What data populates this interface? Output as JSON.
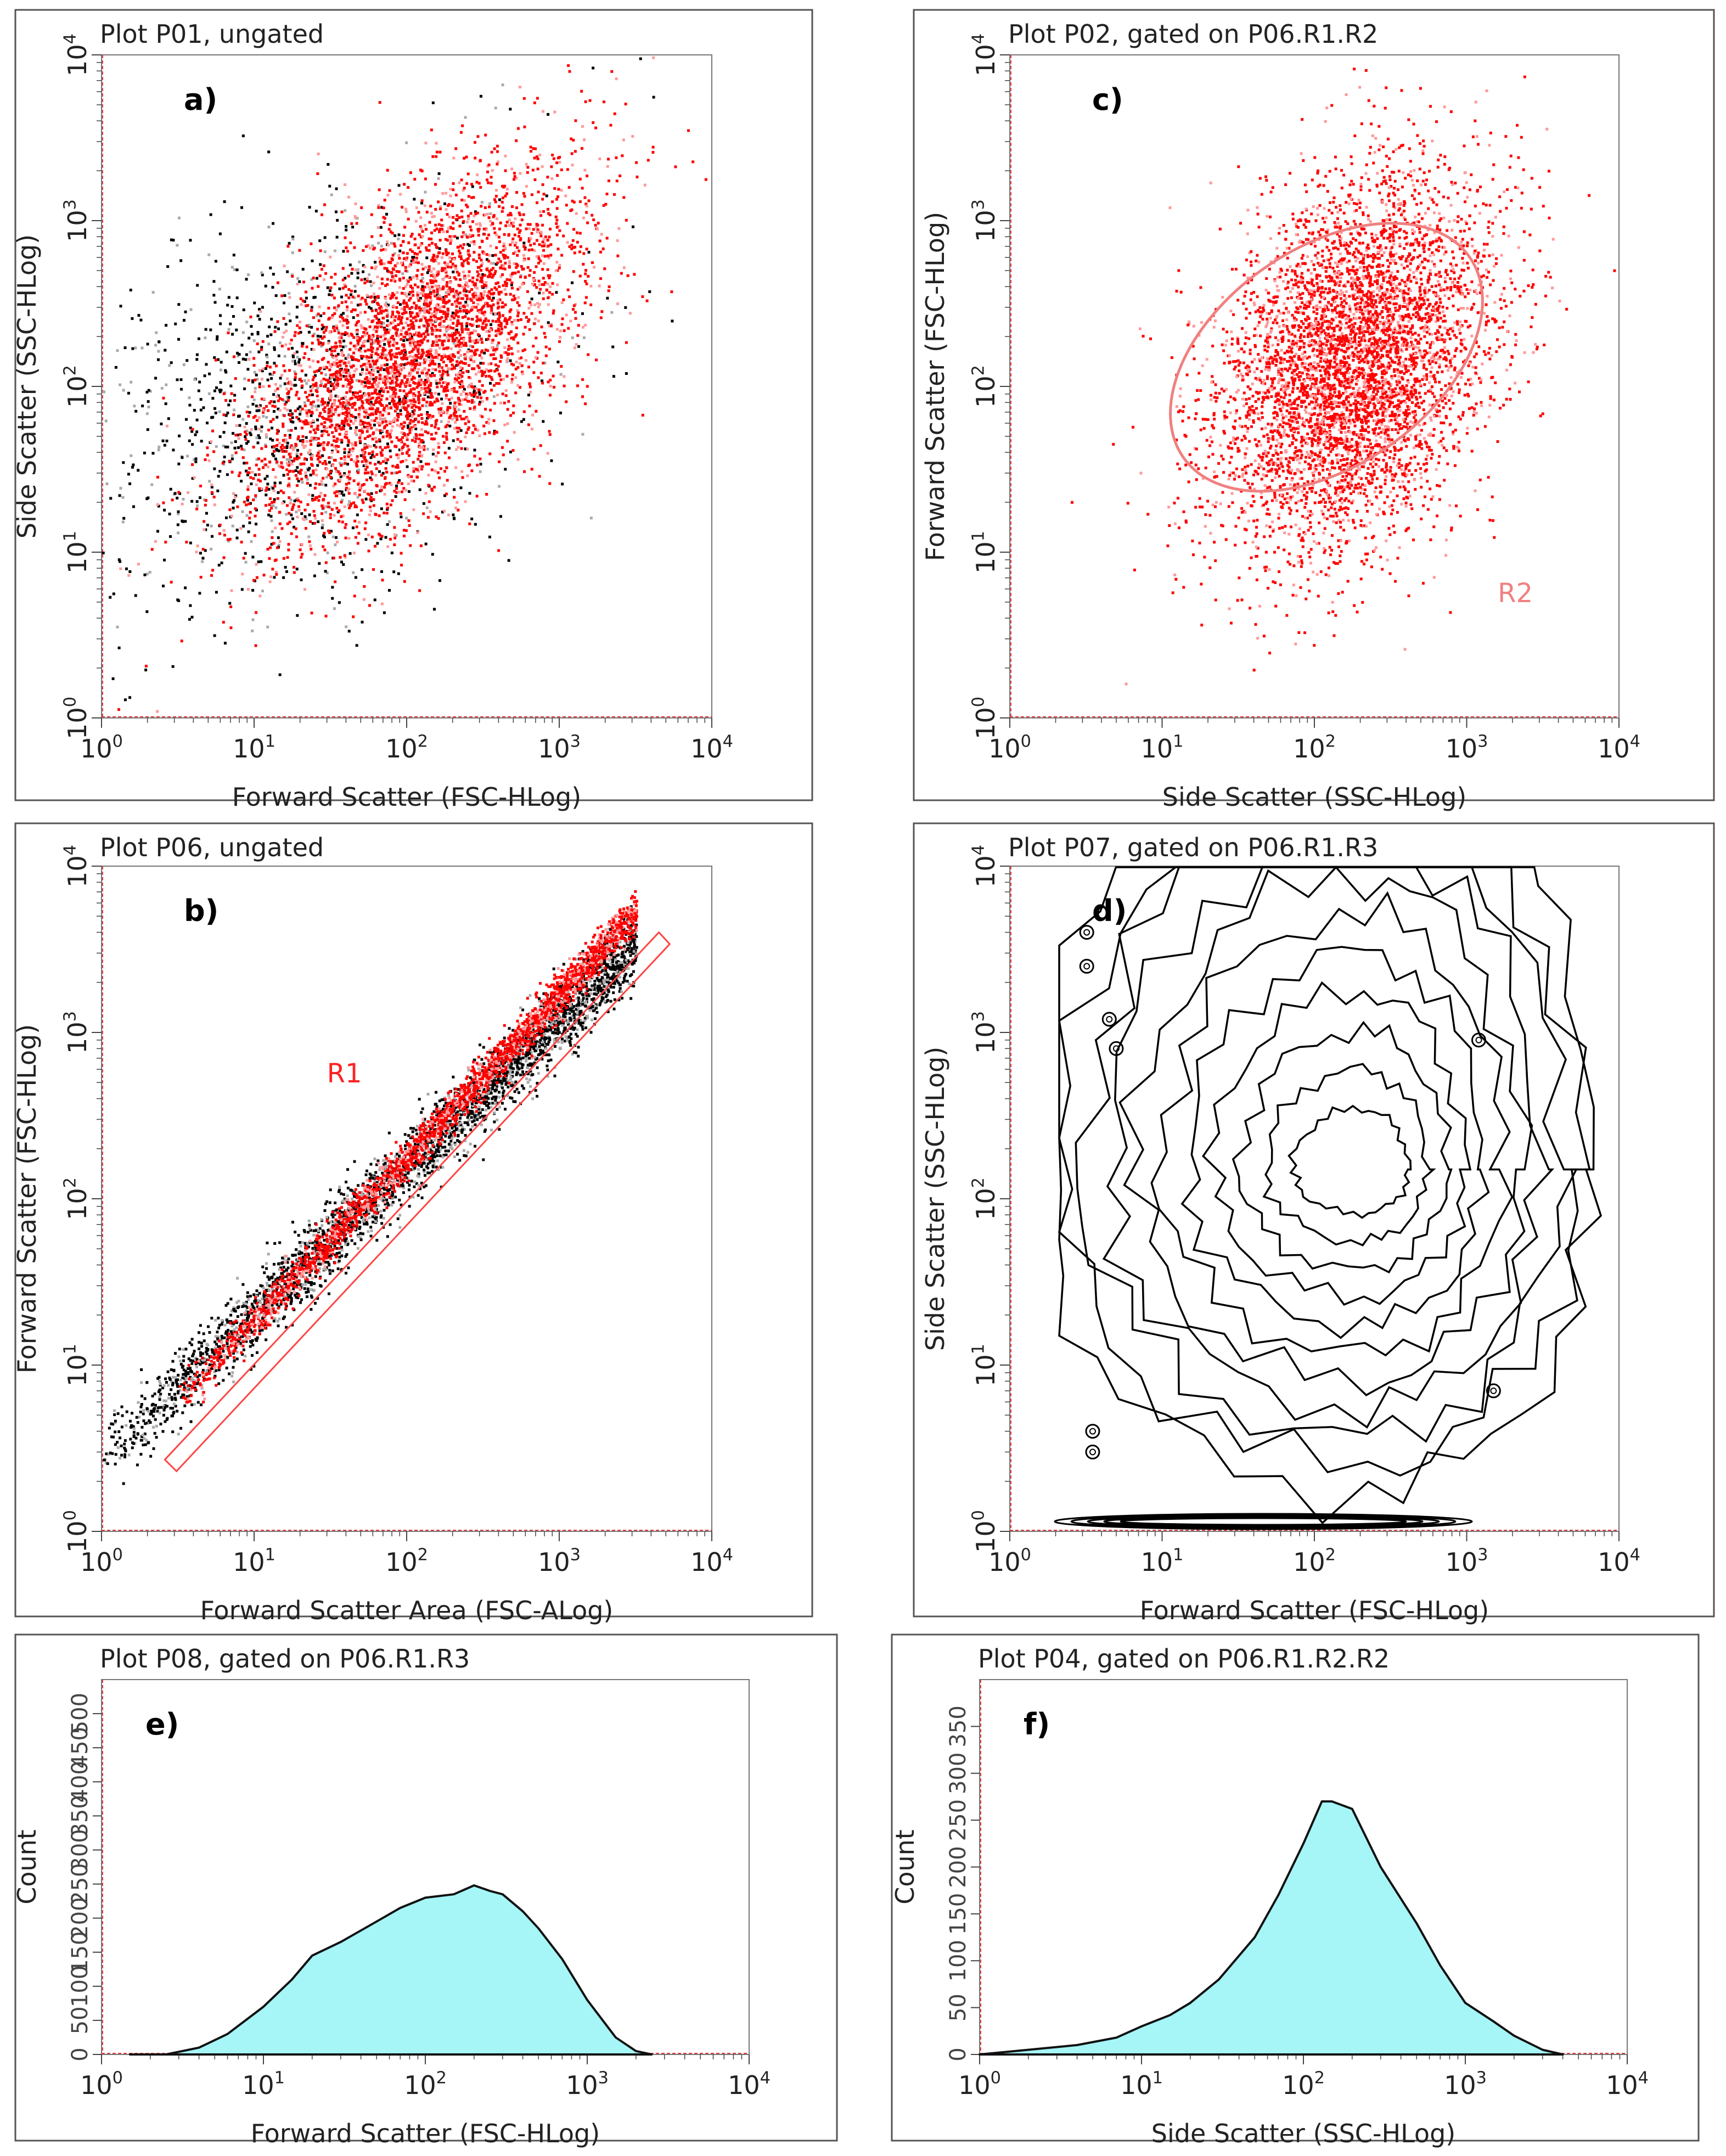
{
  "chart_data": [
    {
      "id": "a",
      "type": "scatter",
      "panel_label": "a)",
      "title": "Plot P01, ungated",
      "xlabel": "Forward Scatter (FSC-HLog)",
      "ylabel": "Side Scatter (SSC-HLog)",
      "xscale": "log",
      "yscale": "log",
      "xlim": [
        1,
        10000
      ],
      "ylim": [
        1,
        10000
      ],
      "series": [
        {
          "name": "ungated events (black)",
          "color": "#000000",
          "center_log": [
            1.35,
            1.9
          ],
          "spread_log": [
            0.75,
            0.65
          ],
          "rho": 0.35,
          "n": 1300
        },
        {
          "name": "gated events (red)",
          "color": "#ff0000",
          "center_log": [
            2.05,
            2.2
          ],
          "spread_log": [
            0.55,
            0.55
          ],
          "rho": 0.6,
          "n": 4200
        }
      ],
      "gates": []
    },
    {
      "id": "b",
      "type": "scatter",
      "panel_label": "b)",
      "title": "Plot P06, ungated",
      "xlabel": "Forward Scatter Area (FSC-ALog)",
      "ylabel": "Forward Scatter (FSC-HLog)",
      "xscale": "log",
      "yscale": "log",
      "xlim": [
        1,
        10000
      ],
      "ylim": [
        1,
        10000
      ],
      "series": [
        {
          "name": "all events (black)",
          "color": "#000000",
          "band": {
            "x_log": [
              0.0,
              3.5
            ],
            "y_log_at_x0": 0.45,
            "slope": 0.88,
            "width_log": 0.22
          },
          "n": 3200
        },
        {
          "name": "R1 events (red)",
          "color": "#ff0000",
          "band": {
            "x_log": [
              0.5,
              3.5
            ],
            "y_log_at_x0": 0.3,
            "slope": 0.98,
            "width_log": 0.12
          },
          "n": 2400
        }
      ],
      "gates": [
        {
          "name": "R1",
          "shape": "rectangle",
          "color": "#ff4444",
          "corners": [
            [
              2.6,
              2.7
            ],
            [
              4500,
              4000
            ],
            [
              5300,
              3400
            ],
            [
              3.1,
              2.3
            ]
          ]
        }
      ]
    },
    {
      "id": "c",
      "type": "scatter",
      "panel_label": "c)",
      "title": "Plot P02, gated on P06.R1.R2",
      "xlabel": "Side Scatter (SSC-HLog)",
      "ylabel": "Forward Scatter (FSC-HLog)",
      "xscale": "log",
      "yscale": "log",
      "xlim": [
        1,
        10000
      ],
      "ylim": [
        1,
        10000
      ],
      "series": [
        {
          "name": "R2 events (red)",
          "color": "#ff0000",
          "center_log": [
            2.25,
            2.15
          ],
          "spread_log": [
            0.45,
            0.55
          ],
          "rho": 0.3,
          "n": 5200
        }
      ],
      "gates": [
        {
          "name": "R2",
          "shape": "ellipse",
          "color": "#f08080",
          "center": [
            120,
            150
          ],
          "semi_axes_log": [
            1.85,
            1.15
          ],
          "rotation_deg": 35
        }
      ]
    },
    {
      "id": "d",
      "type": "contour",
      "panel_label": "d)",
      "title": "Plot P07, gated on P06.R1.R3",
      "xlabel": "Forward Scatter (FSC-HLog)",
      "ylabel": "Side Scatter (SSC-HLog)",
      "xscale": "log",
      "yscale": "log",
      "xlim": [
        1,
        10000
      ],
      "ylim": [
        1,
        10000
      ],
      "peak": [
        200,
        150
      ]
    },
    {
      "id": "e",
      "type": "area",
      "panel_label": "e)",
      "title": "Plot P08, gated on P06.R1.R3",
      "xlabel": "Forward Scatter (FSC-HLog)",
      "ylabel": "Count",
      "xscale": "log",
      "xlim": [
        1,
        10000
      ],
      "ylim": [
        0,
        550
      ],
      "yticks": [
        "0",
        "50",
        "100",
        "150",
        "200",
        "250",
        "300",
        "350",
        "400",
        "450",
        "500"
      ],
      "fill": "#a6f5f7",
      "x": [
        1.5,
        2.5,
        4,
        6,
        10,
        15,
        20,
        30,
        50,
        70,
        100,
        150,
        200,
        250,
        300,
        400,
        500,
        700,
        1000,
        1500,
        2000,
        2500
      ],
      "y": [
        0,
        0,
        10,
        30,
        70,
        110,
        145,
        165,
        195,
        215,
        230,
        235,
        248,
        240,
        235,
        210,
        185,
        140,
        80,
        25,
        5,
        0
      ]
    },
    {
      "id": "f",
      "type": "area",
      "panel_label": "f)",
      "title": "Plot P04, gated on P06.R1.R2.R2",
      "xlabel": "Side Scatter (SSC-HLog)",
      "ylabel": "Count",
      "xscale": "log",
      "xlim": [
        1,
        10000
      ],
      "ylim": [
        0,
        400
      ],
      "yticks": [
        "0",
        "50",
        "100",
        "150",
        "200",
        "250",
        "300",
        "350"
      ],
      "fill": "#a6f5f7",
      "x": [
        1,
        2,
        4,
        7,
        10,
        15,
        20,
        30,
        50,
        70,
        100,
        130,
        150,
        200,
        300,
        500,
        700,
        1000,
        1500,
        2000,
        3000,
        4000
      ],
      "y": [
        0,
        5,
        10,
        18,
        30,
        42,
        55,
        80,
        125,
        170,
        225,
        270,
        270,
        262,
        200,
        140,
        95,
        55,
        35,
        20,
        5,
        0
      ]
    }
  ]
}
